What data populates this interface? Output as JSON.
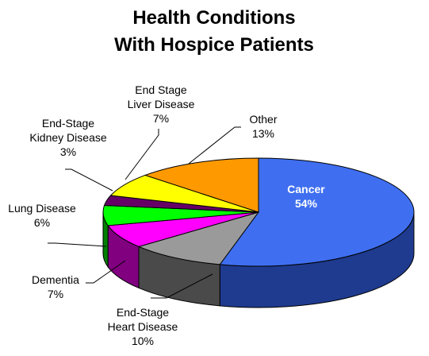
{
  "chart_data": {
    "type": "pie",
    "title_lines": [
      "Health Conditions",
      "With Hospice Patients"
    ],
    "slices": [
      {
        "label": [
          "Cancer"
        ],
        "percent_label": "54%",
        "value": 54,
        "color": "#3f6ff0",
        "side_color": "#1f3b8f"
      },
      {
        "label": [
          "End-Stage",
          "Heart Disease"
        ],
        "percent_label": "10%",
        "value": 10,
        "color": "#9a9a9a",
        "side_color": "#4a4a4a"
      },
      {
        "label": [
          "Dementia"
        ],
        "percent_label": "7%",
        "value": 7,
        "color": "#ff00ff",
        "side_color": "#800080"
      },
      {
        "label": [
          "Lung Disease"
        ],
        "percent_label": "6%",
        "value": 6,
        "color": "#00ff00",
        "side_color": "#008000"
      },
      {
        "label": [
          "End-Stage",
          "Kidney Disease"
        ],
        "percent_label": "3%",
        "value": 3,
        "color": "#660066",
        "side_color": "#330033"
      },
      {
        "label": [
          "End Stage",
          "Liver Disease"
        ],
        "percent_label": "7%",
        "value": 7,
        "color": "#ffff00",
        "side_color": "#808000"
      },
      {
        "label": [
          "Other"
        ],
        "percent_label": "13%",
        "value": 13,
        "color": "#ff9900",
        "side_color": "#804d00"
      }
    ],
    "legend": "none",
    "style": "3d-pie"
  }
}
